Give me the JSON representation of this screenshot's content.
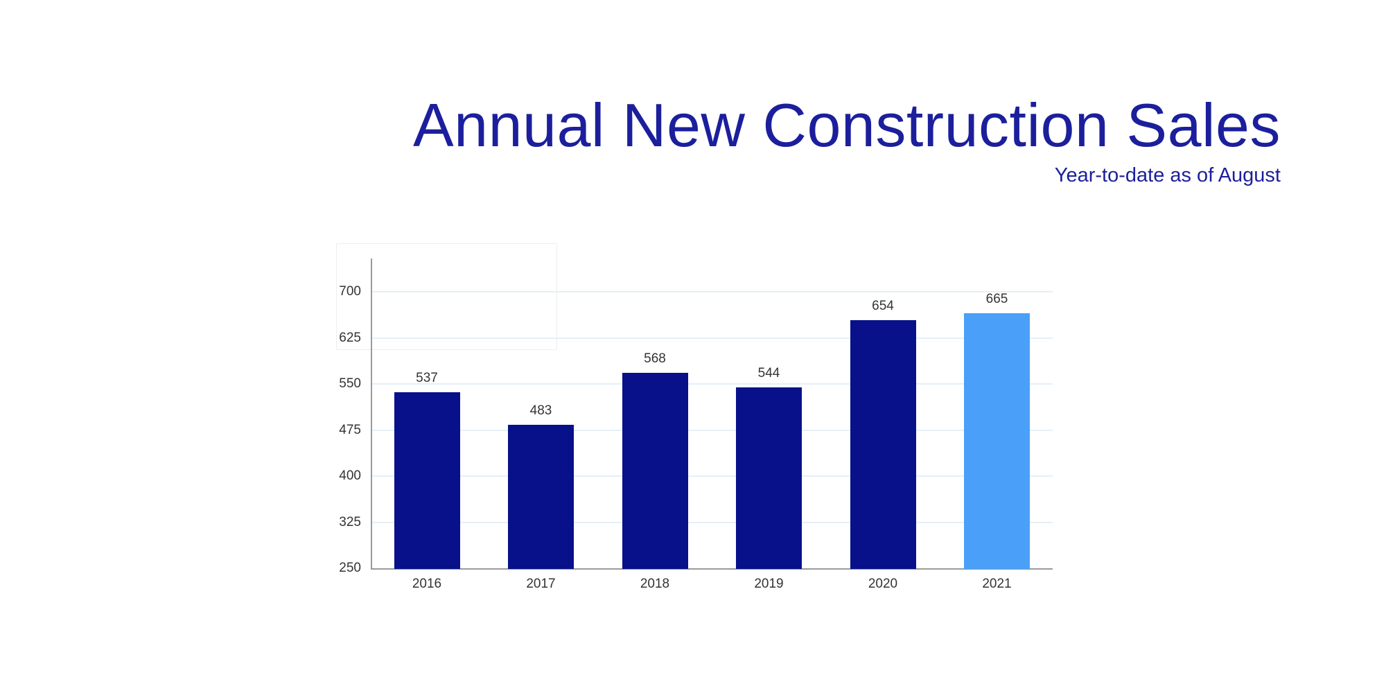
{
  "header": {
    "title": "Annual New Construction Sales",
    "subtitle": "Year-to-date as of August"
  },
  "chart_data": {
    "type": "bar",
    "title": "Annual New Construction Sales",
    "subtitle": "Year-to-date as of August",
    "categories": [
      "2016",
      "2017",
      "2018",
      "2019",
      "2020",
      "2021"
    ],
    "values": [
      537,
      483,
      568,
      544,
      654,
      665
    ],
    "value_labels_shown": true,
    "highlight_category": "2021",
    "xlabel": "",
    "ylabel": "",
    "ylim": [
      250,
      700
    ],
    "yticks": [
      250,
      325,
      400,
      475,
      550,
      625,
      700
    ],
    "grid": true,
    "legend": false
  },
  "colors": {
    "background": "#ffffff",
    "title_text": "#1c1f9c",
    "bar_default": "#081189",
    "bar_highlight": "#4aa0f8",
    "gridline": "#e5eff7",
    "axis_line": "#9a9a9a",
    "tick_text": "#333333",
    "ghost_box_border": "#ededed"
  }
}
